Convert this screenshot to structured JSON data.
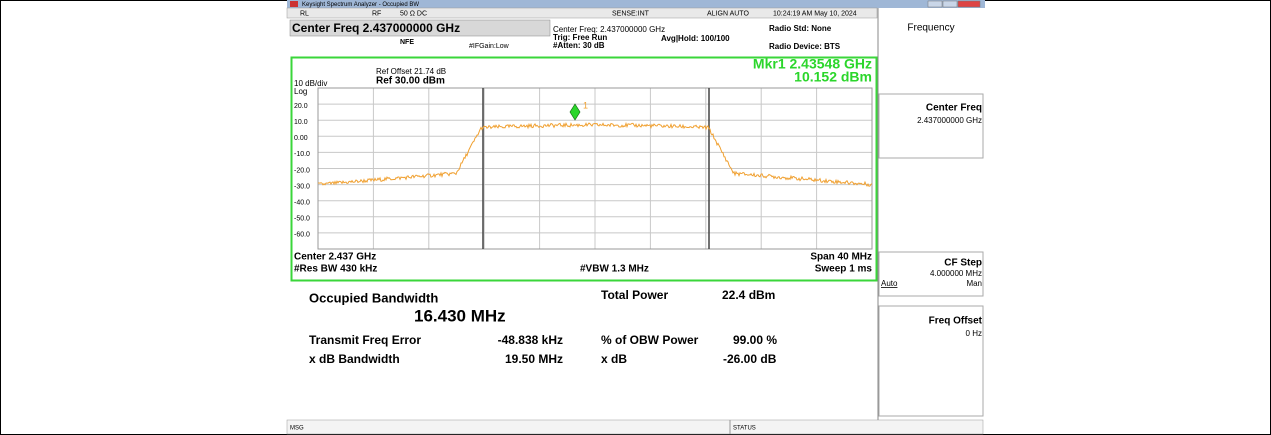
{
  "window_title": "Keysight Spectrum Analyzer - Occupied BW",
  "status_bar": {
    "rl": "RL",
    "rf": "RF",
    "impedance": "50 Ω  DC",
    "sense": "SENSE:INT",
    "align": "ALIGN AUTO",
    "time": "10:24:19 AM May 10, 2024"
  },
  "center_freq_box": "Center Freq 2.437000000 GHz",
  "nfe": "NFE",
  "ifgain": "#IFGain:Low",
  "settings": {
    "center_freq": "Center Freq: 2.437000000 GHz",
    "trig": "Trig: Free Run",
    "atten": "#Atten: 30 dB",
    "avg_hold": "Avg|Hold: 100/100",
    "radio_std": "Radio Std: None",
    "radio_device": "Radio Device: BTS"
  },
  "display": {
    "ref_offset": "Ref Offset 21.74 dB",
    "ref": "Ref 30.00 dBm",
    "scale": "10 dB/div",
    "log": "Log",
    "marker": "Mkr1  2.43548 GHz",
    "marker_value": "10.152 dBm",
    "marker_number": "1",
    "y_labels": [
      "20.0",
      "10.0",
      "0.00",
      "-10.0",
      "-20.0",
      "-30.0",
      "-40.0",
      "-50.0",
      "-60.0"
    ],
    "center": "Center  2.437 GHz",
    "res_bw": "#Res BW  430 kHz",
    "vbw": "#VBW  1.3 MHz",
    "span": "Span 40 MHz",
    "sweep": "Sweep  1 ms"
  },
  "results": {
    "obw_label": "Occupied Bandwidth",
    "obw_value": "16.430 MHz",
    "total_power_label": "Total Power",
    "total_power_value": "22.4 dBm",
    "freq_error_label": "Transmit Freq Error",
    "freq_error_value": "-48.838 kHz",
    "obw_power_label": "% of OBW Power",
    "obw_power_value": "99.00 %",
    "xdb_bw_label": "x dB Bandwidth",
    "xdb_bw_value": "19.50 MHz",
    "xdb_label": "x dB",
    "xdb_value": "-26.00 dB"
  },
  "softkeys": {
    "menu": "Frequency",
    "center_freq": "Center Freq",
    "center_freq_value": "2.437000000 GHz",
    "cf_step": "CF Step",
    "cf_step_value": "4.000000 MHz",
    "auto": "Auto",
    "man": "Man",
    "freq_offset": "Freq Offset",
    "freq_offset_value": "0 Hz"
  },
  "footer": {
    "msg": "MSG",
    "status": "STATUS"
  }
}
